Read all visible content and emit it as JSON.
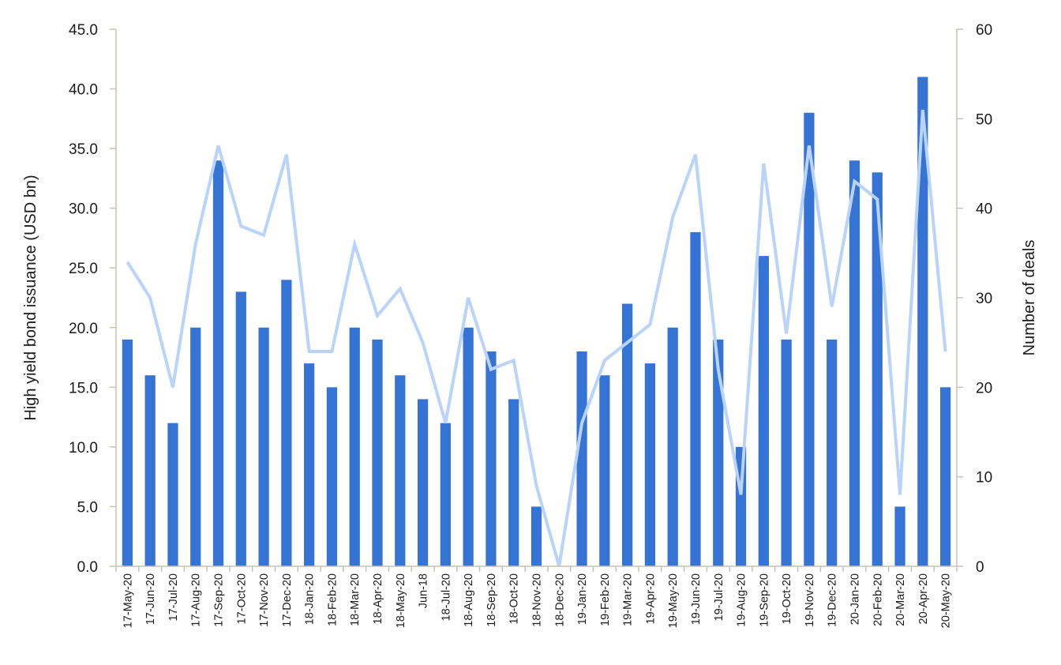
{
  "chart_data": {
    "type": "bar",
    "categories": [
      "17-May-20",
      "17-Jun-20",
      "17-Jul-20",
      "17-Aug-20",
      "17-Sep-20",
      "17-Oct-20",
      "17-Nov-20",
      "17-Dec-20",
      "18-Jan-20",
      "18-Feb-20",
      "18-Mar-20",
      "18-Apr-20",
      "18-May-20",
      "Jun-18",
      "18-Jul-20",
      "18-Aug-20",
      "18-Sep-20",
      "18-Oct-20",
      "18-Nov-20",
      "18-Dec-20",
      "19-Jan-20",
      "19-Feb-20",
      "19-Mar-20",
      "19-Apr-20",
      "19-May-20",
      "19-Jun-20",
      "19-Jul-20",
      "19-Aug-20",
      "19-Sep-20",
      "19-Oct-20",
      "19-Nov-20",
      "19-Dec-20",
      "20-Jan-20",
      "20-Feb-20",
      "20-Mar-20",
      "20-Apr-20",
      "20-May-20"
    ],
    "series": [
      {
        "type": "bar",
        "axis": "left",
        "color": "#3574d4",
        "values": [
          19,
          16,
          12,
          20,
          34,
          23,
          20,
          24,
          17,
          15,
          20,
          19,
          16,
          14,
          12,
          20,
          18,
          14,
          5,
          0,
          18,
          16,
          22,
          17,
          20,
          28,
          19,
          10,
          26,
          19,
          38,
          19,
          34,
          33,
          5,
          41,
          15
        ]
      },
      {
        "type": "line",
        "axis": "right",
        "color": "#b9d3fb",
        "values": [
          34,
          30,
          20,
          36,
          47,
          38,
          37,
          46,
          24,
          24,
          36,
          28,
          31,
          25,
          16,
          30,
          22,
          23,
          9,
          0,
          16,
          23,
          25,
          27,
          39,
          46,
          22,
          8,
          45,
          26,
          47,
          29,
          43,
          41,
          8,
          51,
          24
        ]
      }
    ],
    "y_left": {
      "label": "High yield bond issuance (USD bn)",
      "min": 0,
      "max": 45,
      "step": 5,
      "tick_labels": [
        "0.0",
        "5.0",
        "10.0",
        "15.0",
        "20.0",
        "25.0",
        "30.0",
        "35.0",
        "40.0",
        "45.0"
      ]
    },
    "y_right": {
      "label": "Number of deals",
      "min": 0,
      "max": 60,
      "step": 10,
      "tick_labels": [
        "0",
        "10",
        "20",
        "30",
        "40",
        "50",
        "60"
      ]
    },
    "grid": false,
    "legend": "none"
  }
}
